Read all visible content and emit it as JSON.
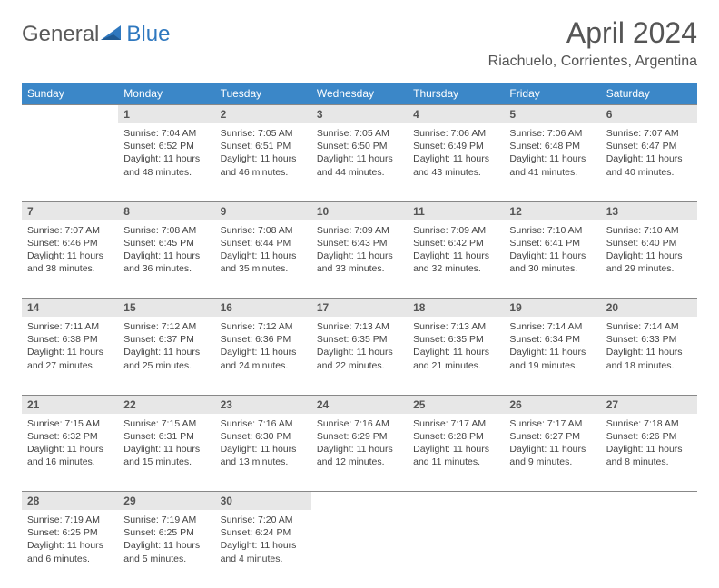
{
  "brand": {
    "general": "General",
    "blue": "Blue"
  },
  "title": "April 2024",
  "location": "Riachuelo, Corrientes, Argentina",
  "colors": {
    "header_bg": "#3b87c8",
    "header_fg": "#ffffff",
    "daynum_bg": "#e7e7e7",
    "daynum_border": "#888888",
    "text": "#444444",
    "logo_gray": "#5a5a5a",
    "logo_blue": "#2f78bf"
  },
  "day_headers": [
    "Sunday",
    "Monday",
    "Tuesday",
    "Wednesday",
    "Thursday",
    "Friday",
    "Saturday"
  ],
  "weeks": [
    [
      null,
      {
        "n": "1",
        "sr": "7:04 AM",
        "ss": "6:52 PM",
        "dl": "11 hours and 48 minutes."
      },
      {
        "n": "2",
        "sr": "7:05 AM",
        "ss": "6:51 PM",
        "dl": "11 hours and 46 minutes."
      },
      {
        "n": "3",
        "sr": "7:05 AM",
        "ss": "6:50 PM",
        "dl": "11 hours and 44 minutes."
      },
      {
        "n": "4",
        "sr": "7:06 AM",
        "ss": "6:49 PM",
        "dl": "11 hours and 43 minutes."
      },
      {
        "n": "5",
        "sr": "7:06 AM",
        "ss": "6:48 PM",
        "dl": "11 hours and 41 minutes."
      },
      {
        "n": "6",
        "sr": "7:07 AM",
        "ss": "6:47 PM",
        "dl": "11 hours and 40 minutes."
      }
    ],
    [
      {
        "n": "7",
        "sr": "7:07 AM",
        "ss": "6:46 PM",
        "dl": "11 hours and 38 minutes."
      },
      {
        "n": "8",
        "sr": "7:08 AM",
        "ss": "6:45 PM",
        "dl": "11 hours and 36 minutes."
      },
      {
        "n": "9",
        "sr": "7:08 AM",
        "ss": "6:44 PM",
        "dl": "11 hours and 35 minutes."
      },
      {
        "n": "10",
        "sr": "7:09 AM",
        "ss": "6:43 PM",
        "dl": "11 hours and 33 minutes."
      },
      {
        "n": "11",
        "sr": "7:09 AM",
        "ss": "6:42 PM",
        "dl": "11 hours and 32 minutes."
      },
      {
        "n": "12",
        "sr": "7:10 AM",
        "ss": "6:41 PM",
        "dl": "11 hours and 30 minutes."
      },
      {
        "n": "13",
        "sr": "7:10 AM",
        "ss": "6:40 PM",
        "dl": "11 hours and 29 minutes."
      }
    ],
    [
      {
        "n": "14",
        "sr": "7:11 AM",
        "ss": "6:38 PM",
        "dl": "11 hours and 27 minutes."
      },
      {
        "n": "15",
        "sr": "7:12 AM",
        "ss": "6:37 PM",
        "dl": "11 hours and 25 minutes."
      },
      {
        "n": "16",
        "sr": "7:12 AM",
        "ss": "6:36 PM",
        "dl": "11 hours and 24 minutes."
      },
      {
        "n": "17",
        "sr": "7:13 AM",
        "ss": "6:35 PM",
        "dl": "11 hours and 22 minutes."
      },
      {
        "n": "18",
        "sr": "7:13 AM",
        "ss": "6:35 PM",
        "dl": "11 hours and 21 minutes."
      },
      {
        "n": "19",
        "sr": "7:14 AM",
        "ss": "6:34 PM",
        "dl": "11 hours and 19 minutes."
      },
      {
        "n": "20",
        "sr": "7:14 AM",
        "ss": "6:33 PM",
        "dl": "11 hours and 18 minutes."
      }
    ],
    [
      {
        "n": "21",
        "sr": "7:15 AM",
        "ss": "6:32 PM",
        "dl": "11 hours and 16 minutes."
      },
      {
        "n": "22",
        "sr": "7:15 AM",
        "ss": "6:31 PM",
        "dl": "11 hours and 15 minutes."
      },
      {
        "n": "23",
        "sr": "7:16 AM",
        "ss": "6:30 PM",
        "dl": "11 hours and 13 minutes."
      },
      {
        "n": "24",
        "sr": "7:16 AM",
        "ss": "6:29 PM",
        "dl": "11 hours and 12 minutes."
      },
      {
        "n": "25",
        "sr": "7:17 AM",
        "ss": "6:28 PM",
        "dl": "11 hours and 11 minutes."
      },
      {
        "n": "26",
        "sr": "7:17 AM",
        "ss": "6:27 PM",
        "dl": "11 hours and 9 minutes."
      },
      {
        "n": "27",
        "sr": "7:18 AM",
        "ss": "6:26 PM",
        "dl": "11 hours and 8 minutes."
      }
    ],
    [
      {
        "n": "28",
        "sr": "7:19 AM",
        "ss": "6:25 PM",
        "dl": "11 hours and 6 minutes."
      },
      {
        "n": "29",
        "sr": "7:19 AM",
        "ss": "6:25 PM",
        "dl": "11 hours and 5 minutes."
      },
      {
        "n": "30",
        "sr": "7:20 AM",
        "ss": "6:24 PM",
        "dl": "11 hours and 4 minutes."
      },
      null,
      null,
      null,
      null
    ]
  ],
  "labels": {
    "sunrise": "Sunrise:",
    "sunset": "Sunset:",
    "daylight": "Daylight:"
  }
}
